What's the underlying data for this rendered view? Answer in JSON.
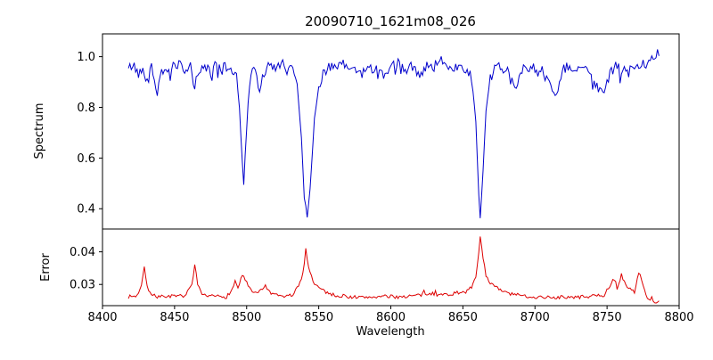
{
  "chart_data": {
    "type": "line",
    "title": "20090710_1621m08_026",
    "xlabel": "Wavelength",
    "xlim": [
      8400,
      8800
    ],
    "xticks": [
      8400,
      8450,
      8500,
      8550,
      8600,
      8650,
      8700,
      8750,
      8800
    ],
    "xtick_labels": [
      "8400",
      "8450",
      "8500",
      "8550",
      "8600",
      "8650",
      "8700",
      "8750",
      "8800"
    ],
    "x_range": [
      8418,
      8786
    ],
    "grid": false,
    "legend": "none",
    "panels": [
      {
        "name": "spectrum",
        "ylabel": "Spectrum",
        "color": "#0000cc",
        "ylim": [
          0.32,
          1.09
        ],
        "yticks": [
          0.4,
          0.6,
          0.8,
          1.0
        ],
        "ytick_labels": [
          "0.4",
          "0.6",
          "0.8",
          "1.0"
        ],
        "noise_amp": 0.022,
        "spike_prob": 0.06,
        "spike_amp": 0.05,
        "spike_sign": -1,
        "damp_below": 0.88,
        "seed": 42,
        "anchors": [
          [
            8418,
            0.95
          ],
          [
            8421,
            0.97
          ],
          [
            8425,
            0.93
          ],
          [
            8428,
            0.97
          ],
          [
            8431,
            0.9
          ],
          [
            8434,
            0.96
          ],
          [
            8438,
            0.85
          ],
          [
            8441,
            0.96
          ],
          [
            8445,
            0.92
          ],
          [
            8449,
            0.96
          ],
          [
            8453,
            0.97
          ],
          [
            8457,
            0.93
          ],
          [
            8461,
            0.96
          ],
          [
            8464,
            0.88
          ],
          [
            8467,
            0.95
          ],
          [
            8471,
            0.96
          ],
          [
            8475,
            0.94
          ],
          [
            8479,
            0.97
          ],
          [
            8483,
            0.95
          ],
          [
            8487,
            0.96
          ],
          [
            8490,
            0.94
          ],
          [
            8493,
            0.93
          ],
          [
            8495,
            0.8
          ],
          [
            8497,
            0.58
          ],
          [
            8498,
            0.5
          ],
          [
            8499,
            0.62
          ],
          [
            8501,
            0.82
          ],
          [
            8503,
            0.93
          ],
          [
            8506,
            0.95
          ],
          [
            8509,
            0.86
          ],
          [
            8512,
            0.94
          ],
          [
            8516,
            0.96
          ],
          [
            8520,
            0.95
          ],
          [
            8524,
            0.97
          ],
          [
            8528,
            0.96
          ],
          [
            8532,
            0.95
          ],
          [
            8535,
            0.9
          ],
          [
            8538,
            0.68
          ],
          [
            8540,
            0.45
          ],
          [
            8542,
            0.36
          ],
          [
            8544,
            0.48
          ],
          [
            8547,
            0.75
          ],
          [
            8550,
            0.88
          ],
          [
            8553,
            0.94
          ],
          [
            8557,
            0.96
          ],
          [
            8561,
            0.95
          ],
          [
            8565,
            0.97
          ],
          [
            8570,
            0.96
          ],
          [
            8575,
            0.95
          ],
          [
            8580,
            0.93
          ],
          [
            8585,
            0.96
          ],
          [
            8590,
            0.95
          ],
          [
            8595,
            0.92
          ],
          [
            8600,
            0.96
          ],
          [
            8605,
            0.97
          ],
          [
            8610,
            0.95
          ],
          [
            8615,
            0.96
          ],
          [
            8620,
            0.93
          ],
          [
            8625,
            0.97
          ],
          [
            8630,
            0.96
          ],
          [
            8635,
            0.98
          ],
          [
            8640,
            0.97
          ],
          [
            8645,
            0.96
          ],
          [
            8650,
            0.97
          ],
          [
            8653,
            0.94
          ],
          [
            8656,
            0.92
          ],
          [
            8659,
            0.75
          ],
          [
            8661,
            0.45
          ],
          [
            8662,
            0.37
          ],
          [
            8664,
            0.55
          ],
          [
            8666,
            0.78
          ],
          [
            8669,
            0.91
          ],
          [
            8672,
            0.95
          ],
          [
            8676,
            0.96
          ],
          [
            8680,
            0.95
          ],
          [
            8684,
            0.9
          ],
          [
            8687,
            0.87
          ],
          [
            8690,
            0.95
          ],
          [
            8694,
            0.96
          ],
          [
            8698,
            0.95
          ],
          [
            8702,
            0.97
          ],
          [
            8706,
            0.94
          ],
          [
            8710,
            0.9
          ],
          [
            8714,
            0.84
          ],
          [
            8717,
            0.88
          ],
          [
            8720,
            0.95
          ],
          [
            8724,
            0.96
          ],
          [
            8728,
            0.95
          ],
          [
            8732,
            0.96
          ],
          [
            8736,
            0.94
          ],
          [
            8740,
            0.92
          ],
          [
            8744,
            0.88
          ],
          [
            8748,
            0.86
          ],
          [
            8752,
            0.93
          ],
          [
            8756,
            0.96
          ],
          [
            8760,
            0.95
          ],
          [
            8764,
            0.93
          ],
          [
            8768,
            0.96
          ],
          [
            8772,
            0.95
          ],
          [
            8776,
            0.97
          ],
          [
            8780,
            0.99
          ],
          [
            8783,
            1.0
          ],
          [
            8786,
            1.02
          ]
        ]
      },
      {
        "name": "error",
        "ylabel": "Error",
        "color": "#dd0000",
        "ylim": [
          0.0235,
          0.047
        ],
        "yticks": [
          0.03,
          0.04
        ],
        "ytick_labels": [
          "0.03",
          "0.04"
        ],
        "noise_amp": 0.00055,
        "spike_prob": 0.04,
        "spike_amp": 0.0012,
        "spike_sign": 1,
        "damp_below": null,
        "seed": 7,
        "anchors": [
          [
            8418,
            0.0262
          ],
          [
            8424,
            0.0265
          ],
          [
            8427,
            0.03
          ],
          [
            8429,
            0.0358
          ],
          [
            8431,
            0.0295
          ],
          [
            8434,
            0.0266
          ],
          [
            8440,
            0.0262
          ],
          [
            8446,
            0.0265
          ],
          [
            8452,
            0.0262
          ],
          [
            8458,
            0.0268
          ],
          [
            8462,
            0.03
          ],
          [
            8464,
            0.0356
          ],
          [
            8466,
            0.0298
          ],
          [
            8469,
            0.0266
          ],
          [
            8474,
            0.0263
          ],
          [
            8480,
            0.0264
          ],
          [
            8486,
            0.0262
          ],
          [
            8490,
            0.0285
          ],
          [
            8492,
            0.031
          ],
          [
            8494,
            0.029
          ],
          [
            8497,
            0.033
          ],
          [
            8500,
            0.0305
          ],
          [
            8503,
            0.028
          ],
          [
            8507,
            0.027
          ],
          [
            8510,
            0.0285
          ],
          [
            8513,
            0.0295
          ],
          [
            8516,
            0.0275
          ],
          [
            8520,
            0.0266
          ],
          [
            8526,
            0.0263
          ],
          [
            8532,
            0.0268
          ],
          [
            8536,
            0.0295
          ],
          [
            8539,
            0.033
          ],
          [
            8541,
            0.0408
          ],
          [
            8543,
            0.0355
          ],
          [
            8546,
            0.031
          ],
          [
            8549,
            0.0295
          ],
          [
            8552,
            0.0285
          ],
          [
            8556,
            0.0275
          ],
          [
            8560,
            0.0268
          ],
          [
            8566,
            0.0264
          ],
          [
            8572,
            0.0262
          ],
          [
            8580,
            0.026
          ],
          [
            8588,
            0.0262
          ],
          [
            8596,
            0.0263
          ],
          [
            8604,
            0.0262
          ],
          [
            8612,
            0.0264
          ],
          [
            8620,
            0.0267
          ],
          [
            8628,
            0.0272
          ],
          [
            8634,
            0.0268
          ],
          [
            8640,
            0.027
          ],
          [
            8646,
            0.0273
          ],
          [
            8652,
            0.0278
          ],
          [
            8656,
            0.029
          ],
          [
            8659,
            0.032
          ],
          [
            8661,
            0.04
          ],
          [
            8662,
            0.0452
          ],
          [
            8664,
            0.038
          ],
          [
            8666,
            0.033
          ],
          [
            8669,
            0.0305
          ],
          [
            8673,
            0.029
          ],
          [
            8678,
            0.0278
          ],
          [
            8684,
            0.027
          ],
          [
            8690,
            0.0266
          ],
          [
            8696,
            0.0263
          ],
          [
            8702,
            0.0261
          ],
          [
            8710,
            0.026
          ],
          [
            8718,
            0.0261
          ],
          [
            8726,
            0.026
          ],
          [
            8734,
            0.0262
          ],
          [
            8742,
            0.0264
          ],
          [
            8748,
            0.0268
          ],
          [
            8752,
            0.0295
          ],
          [
            8755,
            0.0318
          ],
          [
            8757,
            0.029
          ],
          [
            8760,
            0.033
          ],
          [
            8763,
            0.0295
          ],
          [
            8766,
            0.0285
          ],
          [
            8769,
            0.0278
          ],
          [
            8772,
            0.034
          ],
          [
            8774,
            0.031
          ],
          [
            8777,
            0.0265
          ],
          [
            8780,
            0.0255
          ],
          [
            8783,
            0.0248
          ],
          [
            8786,
            0.0248
          ]
        ]
      }
    ]
  }
}
